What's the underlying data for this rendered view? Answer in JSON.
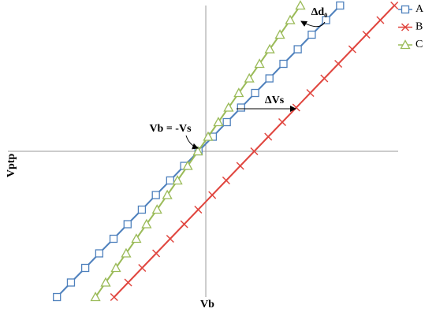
{
  "chart_data": {
    "type": "line",
    "x_label": "Vb",
    "y_label": "Vptp",
    "annotations": [
      "Vb = -Vs",
      "ΔVs",
      "Δd₀"
    ],
    "xlim": [
      -6.78,
      6.59
    ],
    "ylim": [
      -5,
      5
    ],
    "series": [
      {
        "name": "A",
        "color": "#4f81bd",
        "marker": "square",
        "x": [
          -5.1,
          -4.62,
          -4.13,
          -3.65,
          -3.16,
          -2.68,
          -2.19,
          -1.71,
          -1.22,
          -0.74,
          -0.25,
          0.24,
          0.72,
          1.21,
          1.69,
          2.18,
          2.66,
          3.15,
          3.63,
          4.12,
          4.6
        ],
        "values": [
          -5,
          -4.5,
          -4,
          -3.5,
          -3,
          -2.5,
          -2,
          -1.5,
          -1,
          -0.5,
          0,
          0.5,
          1,
          1.5,
          2,
          2.5,
          3,
          3.5,
          4,
          4.5,
          5
        ]
      },
      {
        "name": "B",
        "color": "#e0463f",
        "marker": "cross",
        "x": [
          -3.14,
          -2.66,
          -2.18,
          -1.7,
          -1.22,
          -0.74,
          -0.26,
          0.22,
          0.7,
          1.18,
          1.66,
          2.14,
          2.62,
          3.1,
          3.58,
          4.06,
          4.54,
          5.02,
          5.5,
          5.98,
          6.46
        ],
        "values": [
          -5,
          -4.5,
          -4,
          -3.5,
          -3,
          -2.5,
          -2,
          -1.5,
          -1,
          -0.5,
          0,
          0.5,
          1,
          1.5,
          2,
          2.5,
          3,
          3.5,
          4,
          4.5,
          5
        ]
      },
      {
        "name": "C",
        "color": "#9bbb59",
        "marker": "triangle",
        "x": [
          -3.78,
          -3.43,
          -3.08,
          -2.73,
          -2.38,
          -2.03,
          -1.67,
          -1.32,
          -0.97,
          -0.62,
          -0.27,
          0.08,
          0.43,
          0.78,
          1.13,
          1.49,
          1.84,
          2.19,
          2.54,
          2.89,
          3.24
        ],
        "values": [
          -5,
          -4.5,
          -4,
          -3.5,
          -3,
          -2.5,
          -2,
          -1.5,
          -1,
          -0.5,
          0,
          0.5,
          1,
          1.5,
          2,
          2.5,
          3,
          3.5,
          4,
          4.5,
          5
        ]
      }
    ]
  }
}
